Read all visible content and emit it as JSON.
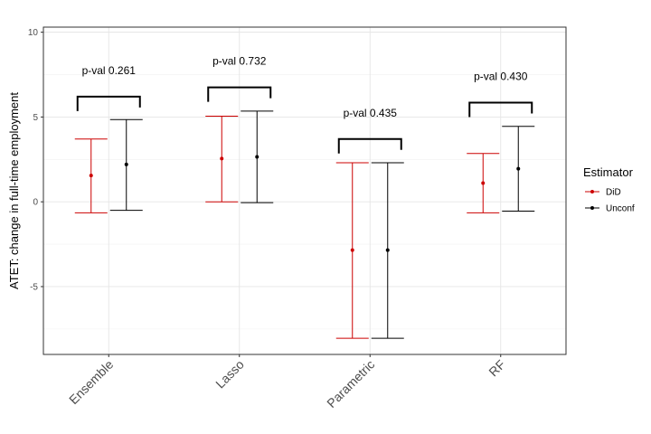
{
  "chart_data": {
    "type": "errorbar",
    "title": "",
    "xlabel": "",
    "ylabel": "ATET: change in full-time employment",
    "ylim": [
      -9,
      10.3
    ],
    "yticks": [
      -5,
      0,
      5,
      10
    ],
    "ytick_labels": [
      "-5",
      "0",
      "5",
      "10"
    ],
    "grid": true,
    "legend_title": "Estimator",
    "legend_position": "right",
    "categories": [
      "Ensemble",
      "Lasso",
      "Parametric",
      "RF"
    ],
    "series": [
      {
        "name": "DiD",
        "color": "#cc0000",
        "estimates": [
          1.55,
          2.55,
          -2.85,
          1.1
        ],
        "lower": [
          -0.65,
          0.0,
          -8.05,
          -0.65
        ],
        "upper": [
          3.7,
          5.05,
          2.3,
          2.85
        ]
      },
      {
        "name": "Unconf",
        "color": "#000000",
        "estimates": [
          2.2,
          2.65,
          -2.85,
          1.95
        ],
        "lower": [
          -0.5,
          -0.05,
          -8.05,
          -0.55
        ],
        "upper": [
          4.85,
          5.35,
          2.3,
          4.45
        ]
      }
    ],
    "annotations": [
      {
        "category": "Ensemble",
        "text": "p-val 0.261",
        "bracket_y": 6.2
      },
      {
        "category": "Lasso",
        "text": "p-val 0.732",
        "bracket_y": 6.75
      },
      {
        "category": "Parametric",
        "text": "p-val 0.435",
        "bracket_y": 3.7
      },
      {
        "category": "RF",
        "text": "p-val 0.430",
        "bracket_y": 5.85
      }
    ]
  }
}
